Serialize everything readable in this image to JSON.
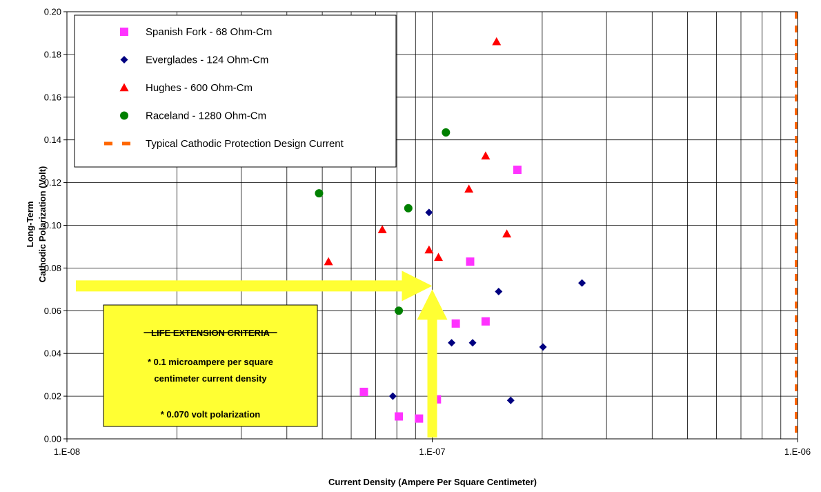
{
  "chart_data": {
    "type": "scatter",
    "title": "",
    "xlabel": "Current Density (Ampere Per Square Centimeter)",
    "ylabel_lines": [
      "Long-Term",
      "Cathodic Polarization (Volt)"
    ],
    "xscale": "log",
    "xlim": [
      1e-08,
      1e-06
    ],
    "ylim": [
      0,
      0.2
    ],
    "x_tick_labels": [
      "1.E-08",
      "1.E-07",
      "1.E-06"
    ],
    "y_tick_labels": [
      "0.00",
      "0.02",
      "0.04",
      "0.06",
      "0.08",
      "0.10",
      "0.12",
      "0.14",
      "0.16",
      "0.18",
      "0.20"
    ],
    "grid": true,
    "legend_position": "top-left",
    "series": [
      {
        "name": "Spanish Fork - 68 Ohm-Cm",
        "marker": "square",
        "color": "#FF33FF",
        "points": [
          [
            6.5e-08,
            0.022
          ],
          [
            8.1e-08,
            0.0105
          ],
          [
            9.2e-08,
            0.0095
          ],
          [
            1.03e-07,
            0.0185
          ],
          [
            1.16e-07,
            0.054
          ],
          [
            1.27e-07,
            0.083
          ],
          [
            1.4e-07,
            0.055
          ],
          [
            1.71e-07,
            0.126
          ]
        ]
      },
      {
        "name": "Everglades - 124 Ohm-Cm",
        "marker": "diamond",
        "color": "#000080",
        "points": [
          [
            7.8e-08,
            0.02
          ],
          [
            9.8e-08,
            0.106
          ],
          [
            1.13e-07,
            0.045
          ],
          [
            1.29e-07,
            0.045
          ],
          [
            1.52e-07,
            0.069
          ],
          [
            1.64e-07,
            0.018
          ],
          [
            2.01e-07,
            0.043
          ],
          [
            2.57e-07,
            0.073
          ]
        ]
      },
      {
        "name": "Hughes - 600 Ohm-Cm",
        "marker": "triangle",
        "color": "#FF0000",
        "points": [
          [
            5.2e-08,
            0.083
          ],
          [
            7.3e-08,
            0.098
          ],
          [
            9.8e-08,
            0.0885
          ],
          [
            1.04e-07,
            0.085
          ],
          [
            1.26e-07,
            0.117
          ],
          [
            1.4e-07,
            0.1325
          ],
          [
            1.5e-07,
            0.186
          ],
          [
            1.6e-07,
            0.096
          ]
        ]
      },
      {
        "name": "Raceland - 1280 Ohm-Cm",
        "marker": "circle",
        "color": "#008000",
        "points": [
          [
            4.9e-08,
            0.115
          ],
          [
            8.1e-08,
            0.06
          ],
          [
            8.6e-08,
            0.108
          ],
          [
            1.09e-07,
            0.1435
          ]
        ]
      }
    ],
    "reference_line": {
      "name": "Typical Cathodic Protection  Design Current",
      "style": "dashed",
      "orientation": "vertical",
      "color": "#FF6600",
      "x": 1e-06
    },
    "annotation": {
      "title": "LIFE EXTENSION CRITERIA",
      "line1a": "* 0.1 microampere per square",
      "line1b": "centimeter current density",
      "line2": "* 0.070 volt polarization",
      "criterion_x": 1e-07,
      "criterion_y": 0.07,
      "box_color": "#FFFF33",
      "arrow_color": "#FFFF33"
    }
  }
}
